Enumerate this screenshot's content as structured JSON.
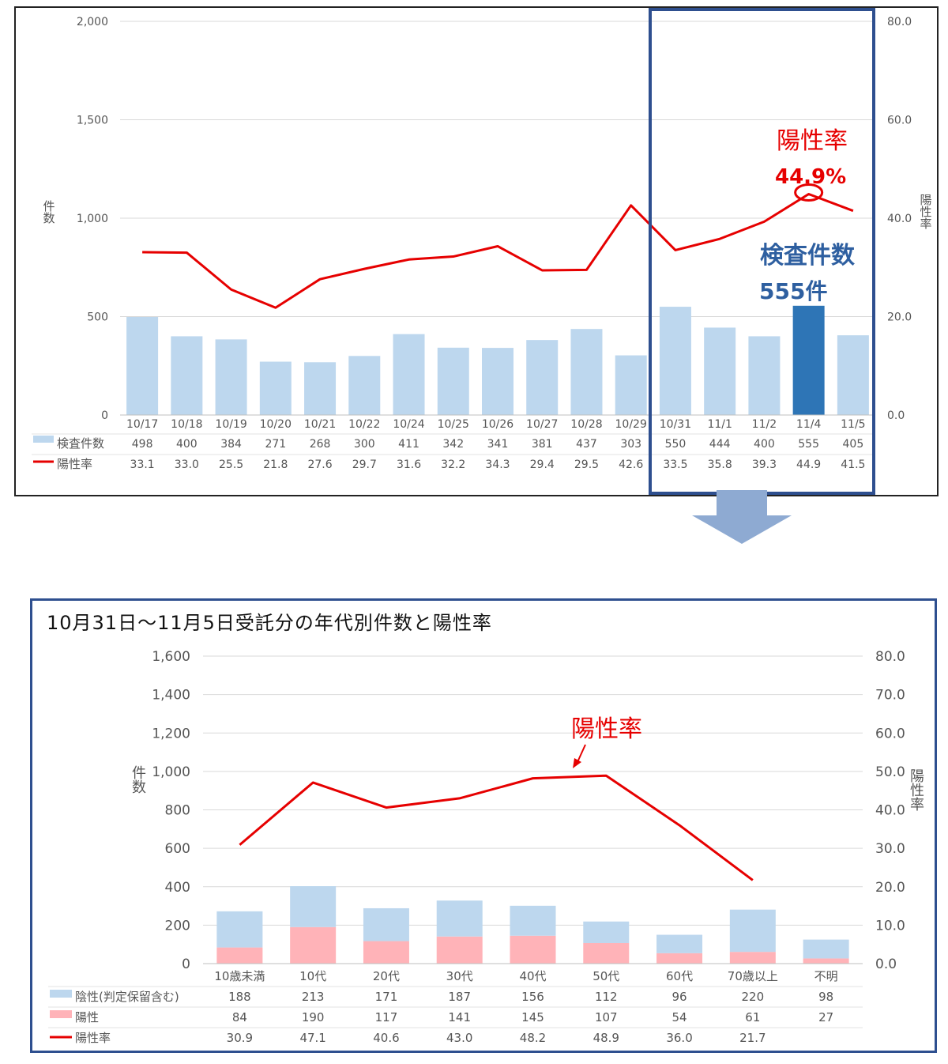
{
  "chart_data": [
    {
      "type": "bar",
      "categories": [
        "10/17",
        "10/18",
        "10/19",
        "10/20",
        "10/21",
        "10/22",
        "10/24",
        "10/25",
        "10/26",
        "10/27",
        "10/28",
        "10/29",
        "10/31",
        "11/1",
        "11/2",
        "11/4",
        "11/5"
      ],
      "series": [
        {
          "name": "検査件数",
          "type": "bar",
          "axis": "left",
          "color": "#bdd7ee",
          "values": [
            498,
            400,
            384,
            271,
            268,
            300,
            411,
            342,
            341,
            381,
            437,
            303,
            550,
            444,
            400,
            555,
            405
          ]
        },
        {
          "name": "陽性率",
          "type": "line",
          "axis": "right",
          "color": "#e60000",
          "values": [
            33.1,
            33.0,
            25.5,
            21.8,
            27.6,
            29.7,
            31.6,
            32.2,
            34.3,
            29.4,
            29.5,
            42.6,
            33.5,
            35.8,
            39.3,
            44.9,
            41.5
          ]
        }
      ],
      "highlight_category": "11/4",
      "highlight_color": "#2e75b6",
      "ylabel": "件\n数",
      "y2label": "陽\n性\n率",
      "ylim": [
        0,
        2000
      ],
      "y2lim": [
        0,
        80
      ],
      "yticks": [
        "0",
        "500",
        "1,000",
        "1,500",
        "2,000"
      ],
      "y2ticks": [
        "0.0",
        "20.0",
        "40.0",
        "60.0",
        "80.0"
      ],
      "grid": true,
      "legend": "table-bottom",
      "annotations": {
        "rate_label": "陽性率",
        "rate_value": "44.9%",
        "count_label": "検査件数",
        "count_value": "555件"
      }
    },
    {
      "type": "bar",
      "title": "10月31日～11月5日受託分の年代別件数と陽性率",
      "categories": [
        "10歳未満",
        "10代",
        "20代",
        "30代",
        "40代",
        "50代",
        "60代",
        "70歳以上",
        "不明"
      ],
      "stacked": true,
      "series": [
        {
          "name": "陰性(判定保留含む)",
          "type": "bar",
          "axis": "left",
          "color": "#bdd7ee",
          "values": [
            188,
            213,
            171,
            187,
            156,
            112,
            96,
            220,
            98
          ]
        },
        {
          "name": "陽性",
          "type": "bar",
          "axis": "left",
          "color": "#ffb3b8",
          "values": [
            84,
            190,
            117,
            141,
            145,
            107,
            54,
            61,
            27
          ]
        },
        {
          "name": "陽性率",
          "type": "line",
          "axis": "right",
          "color": "#e60000",
          "values": [
            30.9,
            47.1,
            40.6,
            43.0,
            48.2,
            48.9,
            36.0,
            21.7,
            null
          ]
        }
      ],
      "ylabel": "件\n数",
      "y2label": "陽\n性\n率",
      "ylim": [
        0,
        1600
      ],
      "y2lim": [
        0,
        80
      ],
      "yticks": [
        "0",
        "200",
        "400",
        "600",
        "800",
        "1,000",
        "1,200",
        "1,400",
        "1,600"
      ],
      "y2ticks": [
        "0.0",
        "10.0",
        "20.0",
        "30.0",
        "40.0",
        "50.0",
        "60.0",
        "70.0",
        "80.0"
      ],
      "grid": true,
      "legend": "table-bottom",
      "annotations": {
        "rate_label": "陽性率"
      }
    }
  ]
}
